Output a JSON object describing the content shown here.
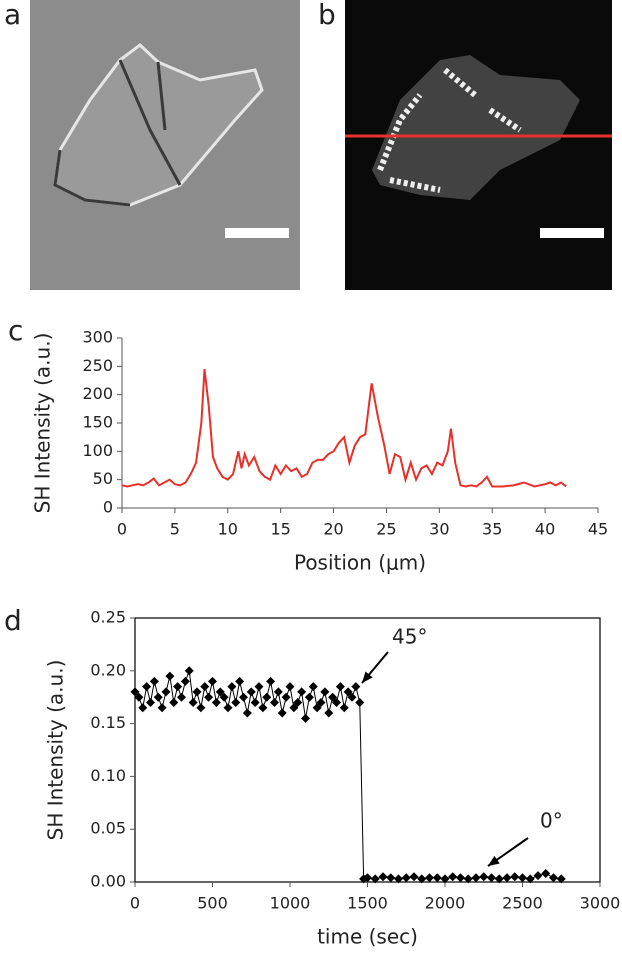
{
  "images": [
    {
      "label": "a"
    },
    {
      "label": "b"
    }
  ],
  "chart_data": [
    {
      "type": "line",
      "panel_label": "c",
      "x_label": "Position (μm)",
      "y_label": "SH Intensity (a.u.)",
      "x": [
        0,
        0.5,
        1,
        1.5,
        2,
        2.5,
        3,
        3.5,
        4,
        4.5,
        5,
        5.5,
        6,
        6.5,
        7,
        7.5,
        7.8,
        8.2,
        8.6,
        9,
        9.5,
        10,
        10.5,
        11,
        11.3,
        11.6,
        12,
        12.5,
        13,
        13.5,
        14,
        14.5,
        15,
        15.5,
        16,
        16.5,
        17,
        17.5,
        18,
        18.5,
        19,
        19.5,
        20,
        20.5,
        21,
        21.5,
        22,
        22.5,
        23,
        23.6,
        24.2,
        24.8,
        25.3,
        25.8,
        26.3,
        26.8,
        27.3,
        27.8,
        28.3,
        28.8,
        29.3,
        29.8,
        30.3,
        30.8,
        31.1,
        31.5,
        32,
        32.5,
        33,
        33.5,
        34,
        34.5,
        35,
        36,
        37,
        38,
        39,
        40,
        40.5,
        41,
        41.5,
        42
      ],
      "series": [
        {
          "color": "#e8302a",
          "values": [
            40,
            38,
            40,
            42,
            40,
            45,
            52,
            40,
            45,
            50,
            42,
            40,
            45,
            60,
            80,
            150,
            245,
            180,
            90,
            70,
            55,
            50,
            60,
            100,
            70,
            95,
            75,
            90,
            65,
            55,
            50,
            75,
            60,
            75,
            65,
            70,
            55,
            60,
            80,
            85,
            85,
            95,
            100,
            115,
            125,
            80,
            110,
            125,
            130,
            220,
            160,
            110,
            60,
            95,
            90,
            50,
            80,
            50,
            70,
            75,
            60,
            80,
            75,
            100,
            140,
            80,
            40,
            38,
            40,
            38,
            45,
            55,
            38,
            38,
            40,
            45,
            38,
            42,
            45,
            40,
            45,
            38
          ]
        }
      ],
      "xlim": [
        0,
        45
      ],
      "xticks": [
        0,
        5,
        10,
        15,
        20,
        25,
        30,
        35,
        40,
        45
      ],
      "ylim": [
        0,
        300
      ],
      "yticks": [
        0,
        50,
        100,
        150,
        200,
        250,
        300
      ]
    },
    {
      "type": "line",
      "panel_label": "d",
      "marker": "diamond",
      "x_label": "time (sec)",
      "y_label": "SH Intensity (a.u.)",
      "annotations": [
        "45°",
        "0°"
      ],
      "x": [
        0,
        25,
        50,
        75,
        100,
        125,
        150,
        175,
        200,
        225,
        250,
        275,
        300,
        325,
        350,
        375,
        400,
        425,
        450,
        475,
        500,
        525,
        550,
        575,
        600,
        625,
        650,
        675,
        700,
        725,
        750,
        775,
        800,
        825,
        850,
        875,
        900,
        925,
        950,
        975,
        1000,
        1025,
        1050,
        1075,
        1100,
        1125,
        1150,
        1175,
        1200,
        1225,
        1250,
        1275,
        1300,
        1325,
        1350,
        1375,
        1400,
        1425,
        1450,
        1475,
        1500,
        1550,
        1600,
        1650,
        1700,
        1750,
        1800,
        1850,
        1900,
        1950,
        2000,
        2050,
        2100,
        2150,
        2200,
        2250,
        2300,
        2350,
        2400,
        2450,
        2500,
        2550,
        2600,
        2650,
        2700,
        2750
      ],
      "series": [
        {
          "color": "#000000",
          "values": [
            0.18,
            0.175,
            0.165,
            0.185,
            0.17,
            0.19,
            0.175,
            0.165,
            0.18,
            0.195,
            0.17,
            0.185,
            0.175,
            0.19,
            0.2,
            0.17,
            0.18,
            0.165,
            0.185,
            0.175,
            0.19,
            0.17,
            0.18,
            0.175,
            0.165,
            0.185,
            0.17,
            0.19,
            0.175,
            0.16,
            0.18,
            0.17,
            0.185,
            0.165,
            0.175,
            0.19,
            0.17,
            0.18,
            0.16,
            0.175,
            0.185,
            0.165,
            0.17,
            0.18,
            0.155,
            0.175,
            0.185,
            0.165,
            0.17,
            0.18,
            0.16,
            0.175,
            0.17,
            0.185,
            0.165,
            0.18,
            0.175,
            0.185,
            0.17,
            0.003,
            0.004,
            0.003,
            0.005,
            0.004,
            0.003,
            0.004,
            0.005,
            0.003,
            0.004,
            0.004,
            0.003,
            0.005,
            0.004,
            0.003,
            0.004,
            0.005,
            0.004,
            0.003,
            0.004,
            0.005,
            0.004,
            0.003,
            0.006,
            0.008,
            0.004,
            0.003
          ]
        }
      ],
      "xlim": [
        0,
        3000
      ],
      "xticks": [
        0,
        500,
        1000,
        1500,
        2000,
        2500,
        3000
      ],
      "ylim": [
        0,
        0.25
      ],
      "yticks": [
        {
          "value": 0,
          "label": "0.00"
        },
        0.05,
        {
          "value": 0.1,
          "label": "0.10"
        },
        0.15,
        {
          "value": 0.2,
          "label": "0.20"
        },
        0.25
      ]
    }
  ]
}
